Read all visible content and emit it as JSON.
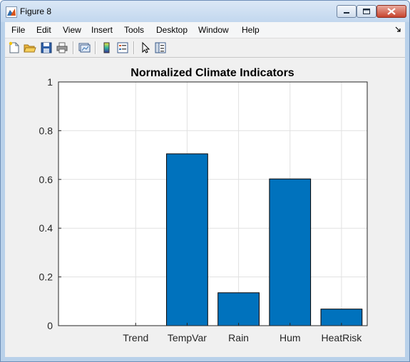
{
  "window": {
    "title": "Figure 8",
    "icon": "matlab-figure-icon",
    "controls": [
      "minimize-icon",
      "maximize-icon",
      "close-icon"
    ]
  },
  "menubar": {
    "items": [
      "File",
      "Edit",
      "View",
      "Insert",
      "Tools",
      "Desktop",
      "Window",
      "Help"
    ],
    "dock_icon": "dock-arrow-icon"
  },
  "toolbar": {
    "icons": [
      "new-figure-icon",
      "open-file-icon",
      "save-icon",
      "print-icon",
      "link-plot-icon",
      "insert-colorbar-icon",
      "insert-legend-icon",
      "pointer-icon",
      "property-editor-icon"
    ]
  },
  "colors": {
    "bar_fill": "#0072bd",
    "axes_bg": "#ffffff",
    "figure_bg": "#f0f0f0",
    "grid": "#e1e1e1"
  },
  "chart_data": {
    "type": "bar",
    "title": "Normalized Climate Indicators",
    "xlabel": "",
    "ylabel": "",
    "categories": [
      "Trend",
      "TempVar",
      "Rain",
      "Hum",
      "HeatRisk"
    ],
    "values": [
      0,
      0.705,
      0.135,
      0.602,
      0.068
    ],
    "ylim": [
      0,
      1
    ],
    "yticks": [
      "0",
      "0.2",
      "0.4",
      "0.6",
      "0.8",
      "1"
    ],
    "ytick_values": [
      0,
      0.2,
      0.4,
      0.6,
      0.8,
      1
    ],
    "grid": true,
    "legend": "none"
  }
}
